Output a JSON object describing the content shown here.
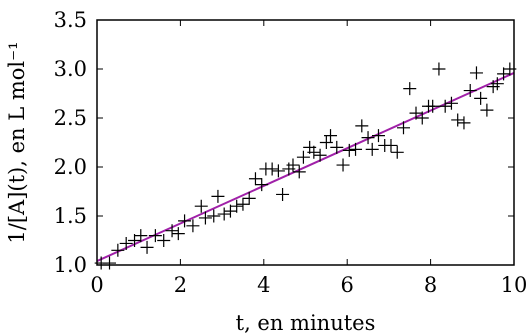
{
  "chart_data": {
    "type": "scatter",
    "title": "",
    "xlabel": "t, en minutes",
    "ylabel": "1/[A](t), en L mol⁻¹",
    "xlim": [
      0,
      10
    ],
    "ylim": [
      1.0,
      3.5
    ],
    "xticks": [
      "0",
      "2",
      "4",
      "6",
      "8",
      "10"
    ],
    "yticks": [
      "1.0",
      "1.5",
      "2.0",
      "2.5",
      "3.0",
      "3.5"
    ],
    "grid": false,
    "legend": "none",
    "series": [
      {
        "kind": "points",
        "marker": "plus",
        "color": "#000000",
        "x": [
          0.1,
          0.3,
          0.5,
          0.7,
          0.9,
          1.05,
          1.2,
          1.4,
          1.6,
          1.8,
          1.95,
          2.1,
          2.3,
          2.5,
          2.6,
          2.8,
          2.9,
          3.05,
          3.2,
          3.35,
          3.5,
          3.65,
          3.8,
          3.95,
          4.05,
          4.2,
          4.35,
          4.45,
          4.6,
          4.7,
          4.85,
          4.95,
          5.1,
          5.2,
          5.35,
          5.5,
          5.6,
          5.75,
          5.9,
          6.05,
          6.2,
          6.35,
          6.5,
          6.6,
          6.75,
          6.9,
          7.05,
          7.2,
          7.35,
          7.5,
          7.65,
          7.8,
          7.95,
          8.05,
          8.2,
          8.35,
          8.5,
          8.65,
          8.8,
          8.95,
          9.1,
          9.2,
          9.35,
          9.5,
          9.6,
          9.75,
          9.9
        ],
        "y": [
          1.02,
          1.02,
          1.15,
          1.22,
          1.25,
          1.3,
          1.18,
          1.3,
          1.25,
          1.35,
          1.32,
          1.45,
          1.4,
          1.6,
          1.48,
          1.5,
          1.7,
          1.52,
          1.55,
          1.6,
          1.62,
          1.68,
          1.88,
          1.82,
          1.98,
          1.98,
          1.96,
          1.72,
          1.98,
          2.02,
          1.95,
          2.1,
          2.2,
          2.15,
          2.12,
          2.25,
          2.32,
          2.2,
          2.02,
          2.17,
          2.18,
          2.42,
          2.3,
          2.18,
          2.32,
          2.22,
          2.22,
          2.15,
          2.4,
          2.8,
          2.55,
          2.5,
          2.62,
          2.62,
          3.0,
          2.62,
          2.65,
          2.48,
          2.45,
          2.78,
          2.96,
          2.7,
          2.58,
          2.82,
          2.85,
          2.95,
          3.0
        ]
      },
      {
        "kind": "fit-line",
        "color": "#a020a8",
        "x": [
          0,
          10
        ],
        "y": [
          1.04,
          2.96
        ]
      }
    ]
  }
}
